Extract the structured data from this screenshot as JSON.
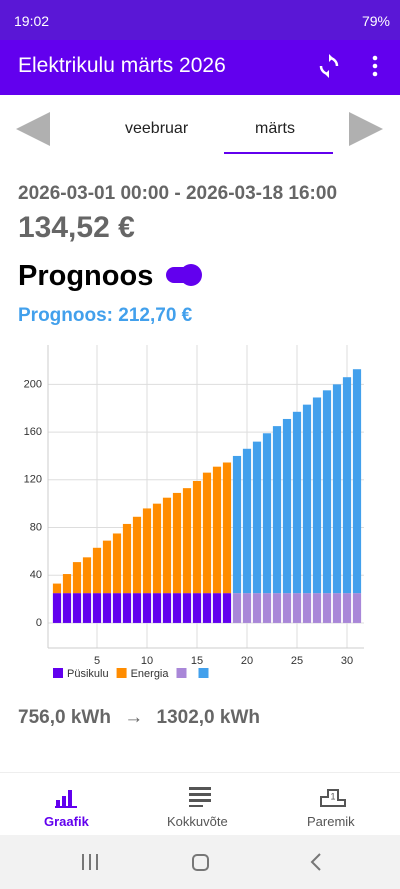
{
  "status": {
    "time": "19:02",
    "battery": "79%"
  },
  "appbar": {
    "title": "Elektrikulu märts 2026"
  },
  "tabs": [
    "veebruar",
    "märts"
  ],
  "summary": {
    "range": "2026-03-01 00:00 - 2026-03-18 16:00",
    "cost": "134,52 €",
    "forecast_toggle": "Prognoos",
    "forecast": "Prognoos: 212,70 €"
  },
  "usage": {
    "from": "756,0 kWh",
    "arrow": "→",
    "to": "1302,0 kWh"
  },
  "nav": [
    "Graafik",
    "Kokkuvõte",
    "Paremik"
  ],
  "chart_data": {
    "type": "bar",
    "stacked": true,
    "x": [
      1,
      2,
      3,
      4,
      5,
      6,
      7,
      8,
      9,
      10,
      11,
      12,
      13,
      14,
      15,
      16,
      17,
      18,
      19,
      20,
      21,
      22,
      23,
      24,
      25,
      26,
      27,
      28,
      29,
      30,
      31
    ],
    "series": [
      {
        "name": "Püsikulu",
        "color": "#6200ee",
        "values": [
          25,
          25,
          25,
          25,
          25,
          25,
          25,
          25,
          25,
          25,
          25,
          25,
          25,
          25,
          25,
          25,
          25,
          25,
          null,
          null,
          null,
          null,
          null,
          null,
          null,
          null,
          null,
          null,
          null,
          null,
          null
        ]
      },
      {
        "name": "Energia",
        "color": "#ff8c00",
        "values": [
          8,
          16,
          26,
          30,
          38,
          44,
          50,
          58,
          64,
          71,
          75,
          80,
          84,
          88,
          94,
          101,
          106,
          109.5,
          null,
          null,
          null,
          null,
          null,
          null,
          null,
          null,
          null,
          null,
          null,
          null,
          null
        ]
      },
      {
        "name": null,
        "color": "#a987d8",
        "values": [
          null,
          null,
          null,
          null,
          null,
          null,
          null,
          null,
          null,
          null,
          null,
          null,
          null,
          null,
          null,
          null,
          null,
          null,
          25,
          25,
          25,
          25,
          25,
          25,
          25,
          25,
          25,
          25,
          25,
          25,
          25
        ]
      },
      {
        "name": null,
        "color": "#42a0ec",
        "values": [
          null,
          null,
          null,
          null,
          null,
          null,
          null,
          null,
          null,
          null,
          null,
          null,
          null,
          null,
          null,
          null,
          null,
          null,
          115,
          121,
          127,
          134,
          140,
          146,
          152,
          158,
          164,
          170,
          175,
          181,
          187.7
        ]
      }
    ],
    "xlim": [
      0.1,
      31.7
    ],
    "xticks": [
      5,
      10,
      15,
      20,
      25,
      30
    ],
    "ylim": [
      -21,
      233
    ],
    "yticks": [
      0,
      40,
      80,
      120,
      160,
      200
    ],
    "grid": true
  }
}
